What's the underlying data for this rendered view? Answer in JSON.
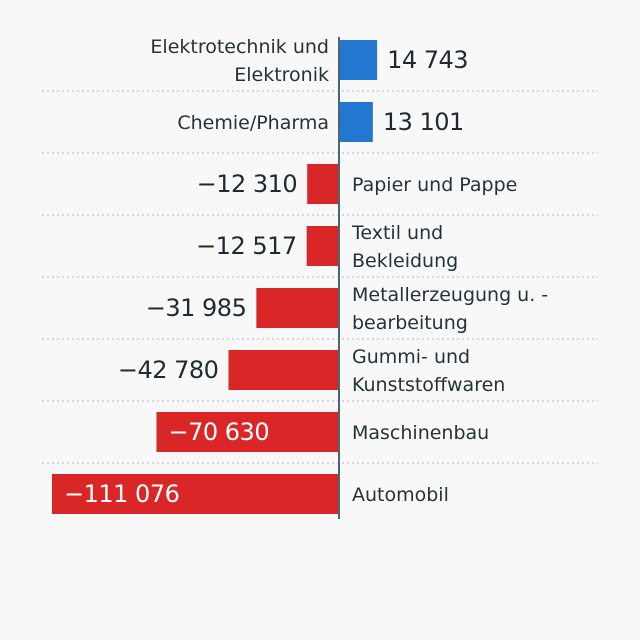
{
  "chart_data": {
    "type": "bar",
    "orientation": "horizontal",
    "categories": [
      "Elektrotechnik und\nElektronik",
      "Chemie/Pharma",
      "Papier und Pappe",
      "Textil und\nBekleidung",
      "Metallerzeugung u. -\nbearbeitung",
      "Gummi- und\nKunststoffwaren",
      "Maschinenbau",
      "Automobil"
    ],
    "values": [
      14743,
      13101,
      -12310,
      -12517,
      -31985,
      -42780,
      -70630,
      -111076
    ],
    "value_labels": [
      "14 743",
      "13 101",
      "−12 310",
      "−12 517",
      "−31 985",
      "−42 780",
      "−70 630",
      "−111 076"
    ],
    "xlim": [
      -111076,
      0
    ],
    "grid": "dotted row separators",
    "colors": {
      "positive": "#2277d0",
      "negative": "#d92727",
      "axis": "#4d6572",
      "grid": "#cccccc"
    }
  }
}
